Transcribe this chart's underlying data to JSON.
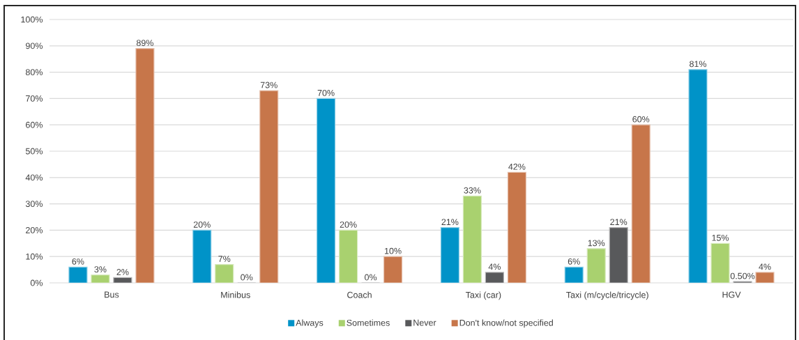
{
  "chart_data": {
    "type": "bar",
    "categories": [
      "Bus",
      "Minibus",
      "Coach",
      "Taxi (car)",
      "Taxi (m/cycle/tricycle)",
      "HGV"
    ],
    "series": [
      {
        "name": "Always",
        "color": "#0093c8",
        "values": [
          6,
          20,
          70,
          21,
          6,
          81
        ],
        "value_labels": [
          "6%",
          "20%",
          "70%",
          "21%",
          "6%",
          "81%"
        ]
      },
      {
        "name": "Sometimes",
        "color": "#a9d16f",
        "values": [
          3,
          7,
          20,
          33,
          13,
          15
        ],
        "value_labels": [
          "3%",
          "7%",
          "20%",
          "33%",
          "13%",
          "15%"
        ]
      },
      {
        "name": "Never",
        "color": "#58595b",
        "values": [
          2,
          0,
          0,
          4,
          21,
          0.5
        ],
        "value_labels": [
          "2%",
          "0%",
          "0%",
          "4%",
          "21%",
          "0.50%"
        ]
      },
      {
        "name": "Don't know/not specified",
        "color": "#c7764a",
        "values": [
          89,
          73,
          10,
          42,
          60,
          4
        ],
        "value_labels": [
          "89%",
          "73%",
          "10%",
          "42%",
          "60%",
          "4%"
        ]
      }
    ],
    "ylim": [
      0,
      100
    ],
    "yticks": [
      {
        "value": 0,
        "label": "0%"
      },
      {
        "value": 10,
        "label": "10%"
      },
      {
        "value": 20,
        "label": "20%"
      },
      {
        "value": 30,
        "label": "30%"
      },
      {
        "value": 40,
        "label": "40%"
      },
      {
        "value": 50,
        "label": "50%"
      },
      {
        "value": 60,
        "label": "60%"
      },
      {
        "value": 70,
        "label": "70%"
      },
      {
        "value": 80,
        "label": "80%"
      },
      {
        "value": 90,
        "label": "90%"
      },
      {
        "value": 100,
        "label": "100%"
      }
    ],
    "grid": "y",
    "legend": "bottom"
  }
}
